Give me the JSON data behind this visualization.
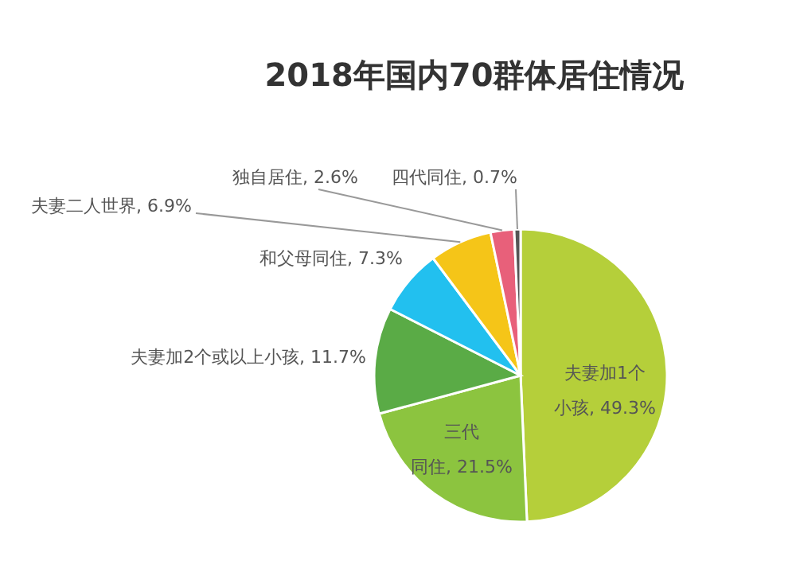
{
  "chart_data": {
    "type": "pie",
    "title": "2018年国内70群体居住情况",
    "categories": [
      "夫妻加1个小孩",
      "三代同住",
      "夫妻加2个或以上小孩",
      "和父母同住",
      "夫妻二人世界",
      "独自居住",
      "四代同住"
    ],
    "values": [
      49.3,
      21.5,
      11.7,
      7.3,
      6.9,
      2.6,
      0.7
    ],
    "value_labels": [
      "49.3%",
      "21.5%",
      "11.7%",
      "7.3%",
      "6.9%",
      "2.6%",
      "0.7%"
    ],
    "colors": [
      "#b5cf3a",
      "#8cc43f",
      "#5aab46",
      "#22c0ef",
      "#f5c518",
      "#e8607a",
      "#555555"
    ]
  }
}
